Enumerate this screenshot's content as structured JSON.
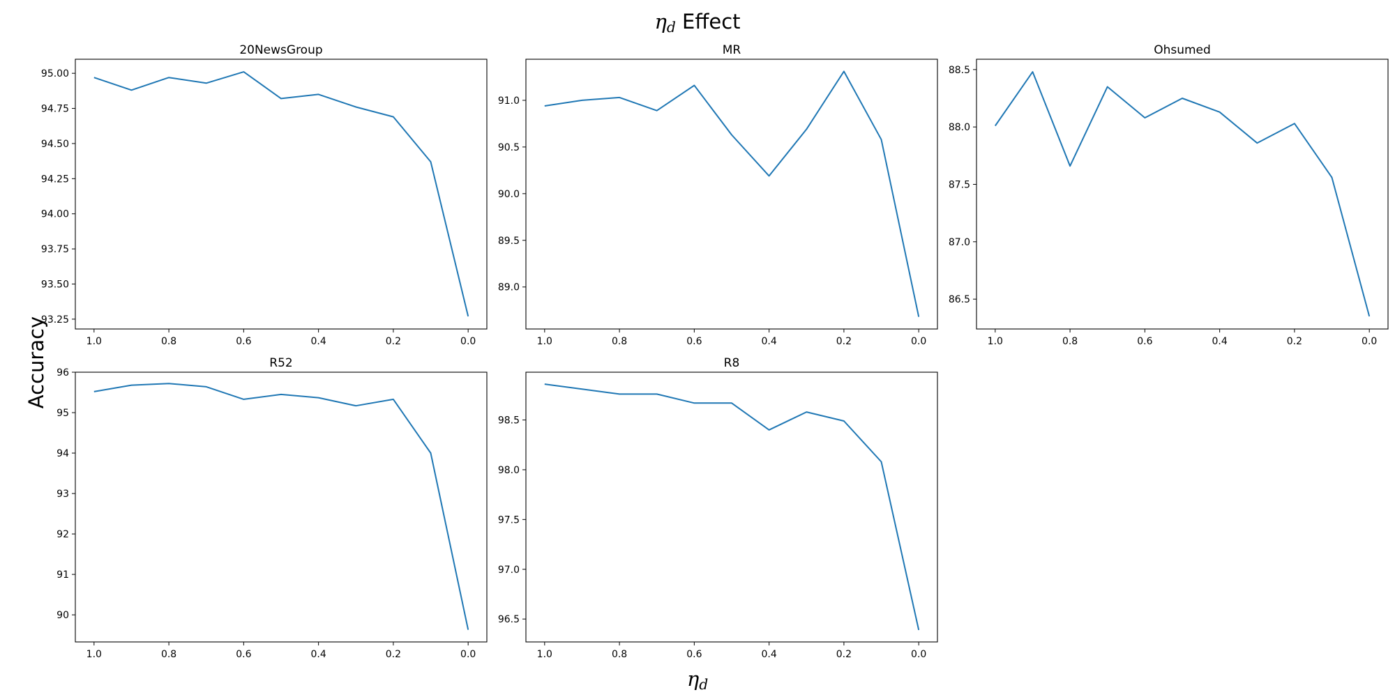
{
  "figure": {
    "suptitle": {
      "symbol": "η",
      "subscript": "d",
      "text": "Effect"
    },
    "supxlabel": {
      "symbol": "η",
      "subscript": "d"
    },
    "supylabel": "Accuracy",
    "line_color": "#1f77b4"
  },
  "chart_data": [
    {
      "type": "line",
      "title": "20NewsGroup",
      "x": [
        1.0,
        0.9,
        0.8,
        0.7,
        0.6,
        0.5,
        0.4,
        0.3,
        0.2,
        0.1,
        0.0
      ],
      "xlim": [
        1.05,
        -0.05
      ],
      "xticks": [
        1.0,
        0.8,
        0.6,
        0.4,
        0.2,
        0.0
      ],
      "xtick_labels": [
        "1.0",
        "0.8",
        "0.6",
        "0.4",
        "0.2",
        "0.0"
      ],
      "values": [
        94.97,
        94.88,
        94.97,
        94.93,
        95.01,
        94.82,
        94.85,
        94.76,
        94.69,
        94.37,
        93.27
      ],
      "ylim": [
        93.18,
        95.1
      ],
      "yticks": [
        93.25,
        93.5,
        93.75,
        94.0,
        94.25,
        94.5,
        94.75,
        95.0
      ],
      "ytick_labels": [
        "93.25",
        "93.50",
        "93.75",
        "94.00",
        "94.25",
        "94.50",
        "94.75",
        "95.00"
      ],
      "grid": false
    },
    {
      "type": "line",
      "title": "MR",
      "x": [
        1.0,
        0.9,
        0.8,
        0.7,
        0.6,
        0.5,
        0.4,
        0.3,
        0.2,
        0.1,
        0.0
      ],
      "xlim": [
        1.05,
        -0.05
      ],
      "xticks": [
        1.0,
        0.8,
        0.6,
        0.4,
        0.2,
        0.0
      ],
      "xtick_labels": [
        "1.0",
        "0.8",
        "0.6",
        "0.4",
        "0.2",
        "0.0"
      ],
      "values": [
        90.94,
        91.0,
        91.03,
        90.89,
        91.16,
        90.63,
        90.19,
        90.69,
        91.31,
        90.58,
        88.68
      ],
      "ylim": [
        88.55,
        91.44
      ],
      "yticks": [
        89.0,
        89.5,
        90.0,
        90.5,
        91.0
      ],
      "ytick_labels": [
        "89.0",
        "89.5",
        "90.0",
        "90.5",
        "91.0"
      ],
      "grid": false
    },
    {
      "type": "line",
      "title": "Ohsumed",
      "x": [
        1.0,
        0.9,
        0.8,
        0.7,
        0.6,
        0.5,
        0.4,
        0.3,
        0.2,
        0.1,
        0.0
      ],
      "xlim": [
        1.05,
        -0.05
      ],
      "xticks": [
        1.0,
        0.8,
        0.6,
        0.4,
        0.2,
        0.0
      ],
      "xtick_labels": [
        "1.0",
        "0.8",
        "0.6",
        "0.4",
        "0.2",
        "0.0"
      ],
      "values": [
        88.01,
        88.48,
        87.66,
        88.35,
        88.08,
        88.25,
        88.13,
        87.86,
        88.03,
        87.56,
        86.35
      ],
      "ylim": [
        86.24,
        88.59
      ],
      "yticks": [
        86.5,
        87.0,
        87.5,
        88.0,
        88.5
      ],
      "ytick_labels": [
        "86.5",
        "87.0",
        "87.5",
        "88.0",
        "88.5"
      ],
      "grid": false
    },
    {
      "type": "line",
      "title": "R52",
      "x": [
        1.0,
        0.9,
        0.8,
        0.7,
        0.6,
        0.5,
        0.4,
        0.3,
        0.2,
        0.1,
        0.0
      ],
      "xlim": [
        1.05,
        -0.05
      ],
      "xticks": [
        1.0,
        0.8,
        0.6,
        0.4,
        0.2,
        0.0
      ],
      "xtick_labels": [
        "1.0",
        "0.8",
        "0.6",
        "0.4",
        "0.2",
        "0.0"
      ],
      "values": [
        95.52,
        95.68,
        95.72,
        95.64,
        95.33,
        95.45,
        95.37,
        95.17,
        95.33,
        94.0,
        89.63
      ],
      "ylim": [
        89.33,
        96.0
      ],
      "yticks": [
        90,
        91,
        92,
        93,
        94,
        95,
        96
      ],
      "ytick_labels": [
        "90",
        "91",
        "92",
        "93",
        "94",
        "95",
        "96"
      ],
      "grid": false
    },
    {
      "type": "line",
      "title": "R8",
      "x": [
        1.0,
        0.9,
        0.8,
        0.7,
        0.6,
        0.5,
        0.4,
        0.3,
        0.2,
        0.1,
        0.0
      ],
      "xlim": [
        1.05,
        -0.05
      ],
      "xticks": [
        1.0,
        0.8,
        0.6,
        0.4,
        0.2,
        0.0
      ],
      "xtick_labels": [
        "1.0",
        "0.8",
        "0.6",
        "0.4",
        "0.2",
        "0.0"
      ],
      "values": [
        98.86,
        98.81,
        98.76,
        98.76,
        98.67,
        98.67,
        98.4,
        98.58,
        98.49,
        98.08,
        96.39
      ],
      "ylim": [
        96.27,
        98.98
      ],
      "yticks": [
        96.5,
        97.0,
        97.5,
        98.0,
        98.5
      ],
      "ytick_labels": [
        "96.5",
        "97.0",
        "97.5",
        "98.0",
        "98.5"
      ],
      "grid": false
    }
  ]
}
